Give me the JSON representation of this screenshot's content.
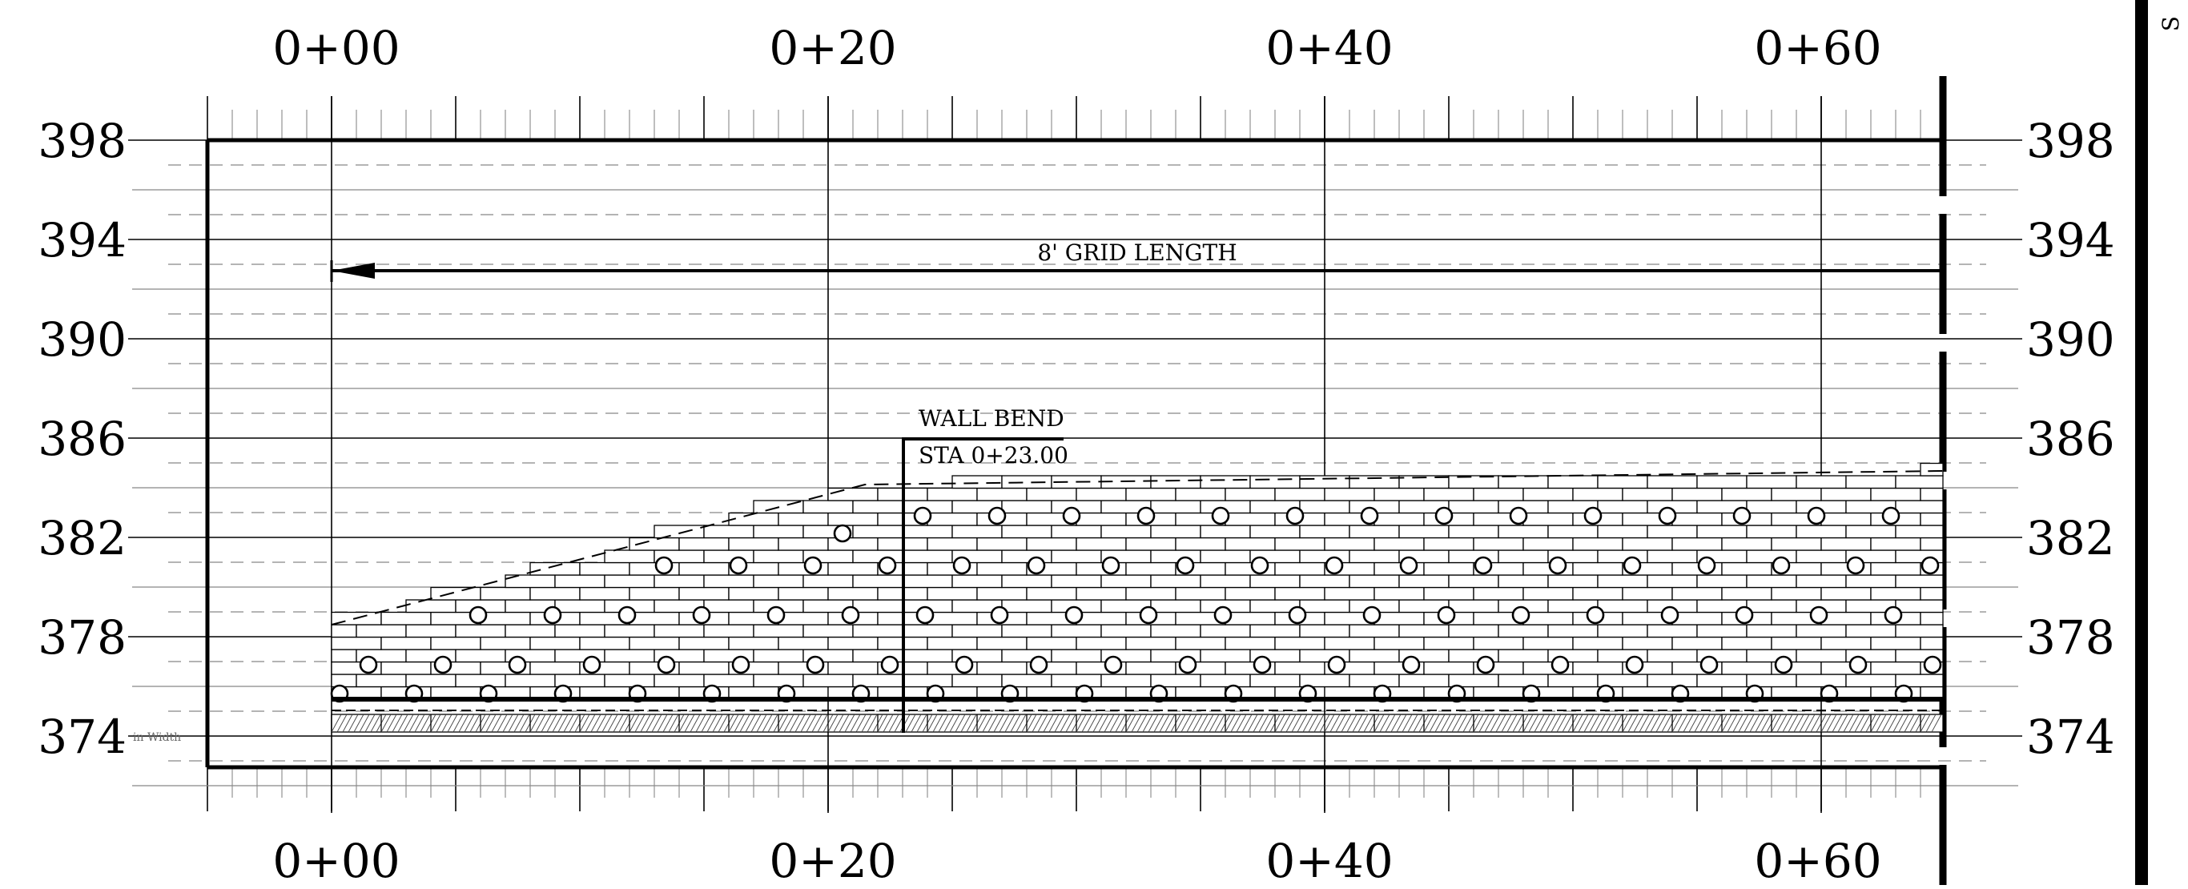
{
  "drawing": {
    "station_labels": [
      "0+00",
      "0+20",
      "0+40",
      "0+60"
    ],
    "elevation_labels": [
      "398",
      "394",
      "390",
      "386",
      "382",
      "378",
      "374"
    ],
    "grid_length_note": "8' GRID LENGTH",
    "wall_bend_title": "WALL BEND",
    "wall_bend_station": "STA 0+23.00",
    "bottom_left_note": "in Width",
    "edge_fragment": "S"
  },
  "colors": {
    "ink": "#000000",
    "light_line": "#888888",
    "hatch": "#444444"
  },
  "wall": {
    "bend_station": 23.0
  }
}
